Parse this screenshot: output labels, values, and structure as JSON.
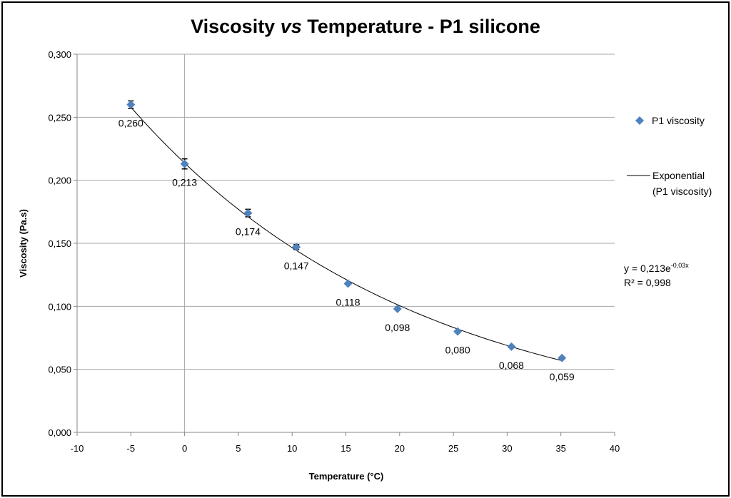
{
  "chart_data": {
    "type": "scatter",
    "title_parts": [
      "Viscosity ",
      "vs",
      " Temperature - P1 silicone"
    ],
    "xlabel": "Temperature (°C)",
    "ylabel": "Viscosity (Pa.s)",
    "xlim": [
      -10,
      40
    ],
    "ylim": [
      0,
      0.3
    ],
    "xticks": [
      "-10",
      "-5",
      "0",
      "5",
      "10",
      "15",
      "20",
      "25",
      "30",
      "35",
      "40"
    ],
    "yticks": [
      "0,000",
      "0,050",
      "0,100",
      "0,150",
      "0,200",
      "0,250",
      "0,300"
    ],
    "grid": "horizontal",
    "legend_position": "right",
    "series": [
      {
        "name": "P1 viscosity",
        "color": "#4F81BD",
        "marker": "diamond",
        "x": [
          -5,
          0,
          5.9,
          10.4,
          15.2,
          19.8,
          25.4,
          30.4,
          35.1
        ],
        "y": [
          0.26,
          0.213,
          0.174,
          0.147,
          0.118,
          0.098,
          0.08,
          0.068,
          0.059
        ],
        "labels": [
          "0,260",
          "0,213",
          "0,174",
          "0,147",
          "0,118",
          "0,098",
          "0,080",
          "0,068",
          "0,059"
        ],
        "error": [
          0.003,
          0.004,
          0.003,
          0.002,
          0,
          0,
          0,
          0,
          0
        ]
      }
    ],
    "trendline": {
      "type": "exponential",
      "legend_lines": [
        "Exponential",
        "(P1 viscosity)"
      ],
      "color": "#000000",
      "equation_base": "y = 0,213e",
      "equation_exp": "-0,03x",
      "r2": "R² = 0,998"
    }
  }
}
